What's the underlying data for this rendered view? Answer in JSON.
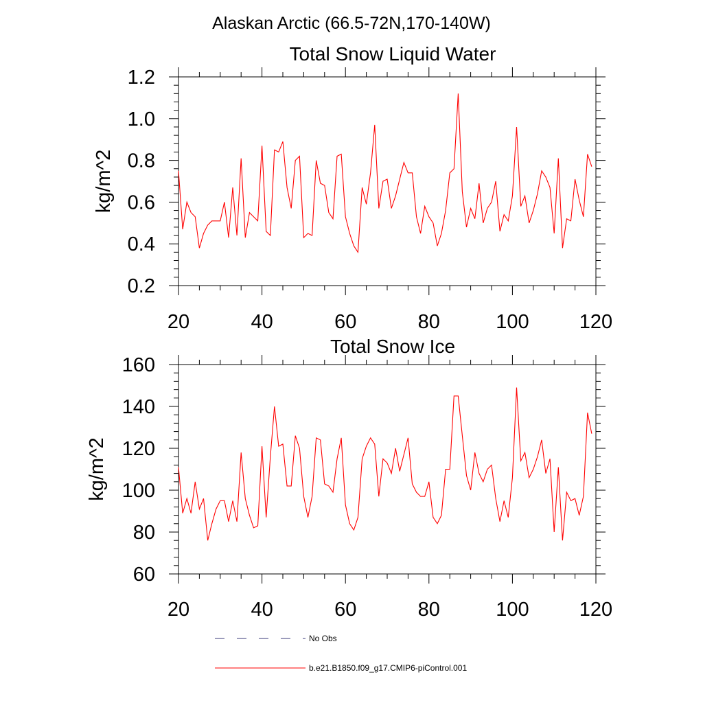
{
  "page": {
    "main_title": "Alaskan Arctic (66.5-72N,170-140W)"
  },
  "legend": {
    "items": [
      {
        "label": "No Obs",
        "color": "#3a3a7a",
        "style": "dashed"
      },
      {
        "label": "b.e21.B1850.f09_g17.CMIP6-piControl.001",
        "color": "#ff0000",
        "style": "solid"
      }
    ]
  },
  "chart_data": [
    {
      "type": "line",
      "title": "Total Snow Liquid Water",
      "xlabel": "",
      "ylabel": "kg/m^2",
      "xlim": [
        20,
        120
      ],
      "ylim": [
        0.2,
        1.2
      ],
      "xticks": [
        "20",
        "40",
        "60",
        "80",
        "100",
        "120"
      ],
      "yticks": [
        "0.2",
        "0.4",
        "0.6",
        "0.8",
        "1.0",
        "1.2"
      ],
      "grid": false,
      "series": [
        {
          "name": "b.e21.B1850.f09_g17.CMIP6-piControl.001",
          "color": "#ff0000",
          "x": [
            20,
            21,
            22,
            23,
            24,
            25,
            26,
            27,
            28,
            29,
            30,
            31,
            32,
            33,
            34,
            35,
            36,
            37,
            38,
            39,
            40,
            41,
            42,
            43,
            44,
            45,
            46,
            47,
            48,
            49,
            50,
            51,
            52,
            53,
            54,
            55,
            56,
            57,
            58,
            59,
            60,
            61,
            62,
            63,
            64,
            65,
            66,
            67,
            68,
            69,
            70,
            71,
            72,
            73,
            74,
            75,
            76,
            77,
            78,
            79,
            80,
            81,
            82,
            83,
            84,
            85,
            86,
            87,
            88,
            89,
            90,
            91,
            92,
            93,
            94,
            95,
            96,
            97,
            98,
            99,
            100,
            101,
            102,
            103,
            104,
            105,
            106,
            107,
            108,
            109,
            110,
            111,
            112,
            113,
            114,
            115,
            116,
            117,
            118,
            119
          ],
          "y": [
            0.75,
            0.47,
            0.6,
            0.55,
            0.53,
            0.38,
            0.45,
            0.49,
            0.51,
            0.51,
            0.51,
            0.6,
            0.43,
            0.67,
            0.44,
            0.81,
            0.43,
            0.55,
            0.53,
            0.51,
            0.87,
            0.46,
            0.44,
            0.85,
            0.84,
            0.89,
            0.67,
            0.57,
            0.8,
            0.82,
            0.43,
            0.45,
            0.44,
            0.8,
            0.69,
            0.68,
            0.55,
            0.52,
            0.82,
            0.83,
            0.53,
            0.45,
            0.39,
            0.36,
            0.67,
            0.59,
            0.74,
            0.97,
            0.57,
            0.7,
            0.71,
            0.57,
            0.63,
            0.71,
            0.79,
            0.74,
            0.74,
            0.53,
            0.45,
            0.58,
            0.53,
            0.5,
            0.39,
            0.45,
            0.56,
            0.74,
            0.76,
            1.12,
            0.65,
            0.48,
            0.57,
            0.52,
            0.69,
            0.5,
            0.57,
            0.6,
            0.7,
            0.46,
            0.54,
            0.51,
            0.63,
            0.96,
            0.58,
            0.63,
            0.5,
            0.56,
            0.64,
            0.75,
            0.72,
            0.67,
            0.45,
            0.81,
            0.38,
            0.52,
            0.51,
            0.71,
            0.61,
            0.53,
            0.83,
            0.77
          ]
        }
      ]
    },
    {
      "type": "line",
      "title": "Total Snow Ice",
      "xlabel": "",
      "ylabel": "kg/m^2",
      "xlim": [
        20,
        120
      ],
      "ylim": [
        60,
        160
      ],
      "xticks": [
        "20",
        "40",
        "60",
        "80",
        "100",
        "120"
      ],
      "yticks": [
        "60",
        "80",
        "100",
        "120",
        "140",
        "160"
      ],
      "grid": false,
      "series": [
        {
          "name": "b.e21.B1850.f09_g17.CMIP6-piControl.001",
          "color": "#ff0000",
          "x": [
            20,
            21,
            22,
            23,
            24,
            25,
            26,
            27,
            28,
            29,
            30,
            31,
            32,
            33,
            34,
            35,
            36,
            37,
            38,
            39,
            40,
            41,
            42,
            43,
            44,
            45,
            46,
            47,
            48,
            49,
            50,
            51,
            52,
            53,
            54,
            55,
            56,
            57,
            58,
            59,
            60,
            61,
            62,
            63,
            64,
            65,
            66,
            67,
            68,
            69,
            70,
            71,
            72,
            73,
            74,
            75,
            76,
            77,
            78,
            79,
            80,
            81,
            82,
            83,
            84,
            85,
            86,
            87,
            88,
            89,
            90,
            91,
            92,
            93,
            94,
            95,
            96,
            97,
            98,
            99,
            100,
            101,
            102,
            103,
            104,
            105,
            106,
            107,
            108,
            109,
            110,
            111,
            112,
            113,
            114,
            115,
            116,
            117,
            118,
            119
          ],
          "y": [
            111,
            89,
            96,
            89,
            104,
            91,
            96,
            76,
            84,
            91,
            95,
            95,
            85,
            95,
            85,
            118,
            96,
            88,
            82,
            83,
            121,
            87,
            116,
            140,
            121,
            122,
            102,
            102,
            126,
            120,
            97,
            87,
            97,
            125,
            124,
            103,
            102,
            99,
            115,
            125,
            93,
            84,
            81,
            87,
            115,
            121,
            125,
            122,
            97,
            115,
            113,
            108,
            120,
            109,
            117,
            125,
            103,
            99,
            97,
            97,
            104,
            87,
            84,
            88,
            110,
            110,
            145,
            145,
            126,
            107,
            100,
            118,
            108,
            104,
            110,
            112,
            96,
            85,
            95,
            87,
            106,
            149,
            114,
            118,
            106,
            110,
            116,
            124,
            108,
            115,
            80,
            111,
            76,
            99,
            95,
            96,
            88,
            97,
            137,
            127
          ]
        }
      ]
    }
  ]
}
